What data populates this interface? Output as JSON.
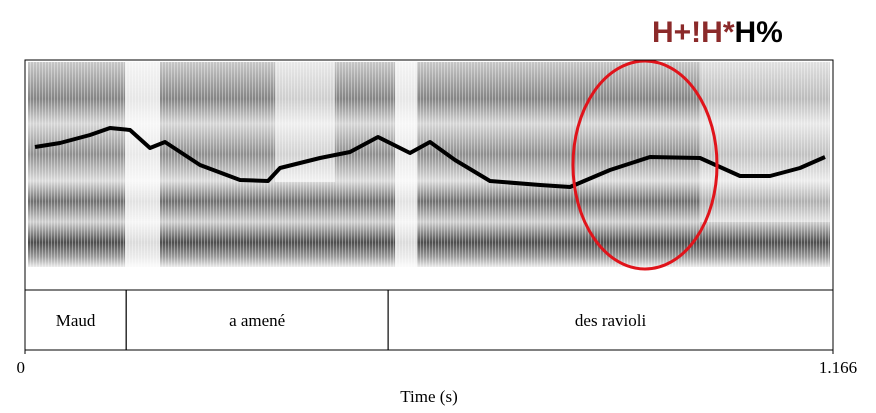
{
  "chart_data": {
    "type": "spectrogram",
    "annotation": [
      "H+!H*",
      "H%"
    ],
    "annotation_colors": [
      "#8b2a2a",
      "#000000"
    ],
    "xlabel": "Time (s)",
    "xlim": [
      0,
      1.166
    ],
    "xticks": [
      0,
      1.166
    ],
    "tier": [
      {
        "label": "Maud",
        "start": 0,
        "end": 0.146
      },
      {
        "label": "a amené",
        "start": 0.146,
        "end": 0.524
      },
      {
        "label": "des ravioli",
        "start": 0.524,
        "end": 1.166
      }
    ]
  }
}
